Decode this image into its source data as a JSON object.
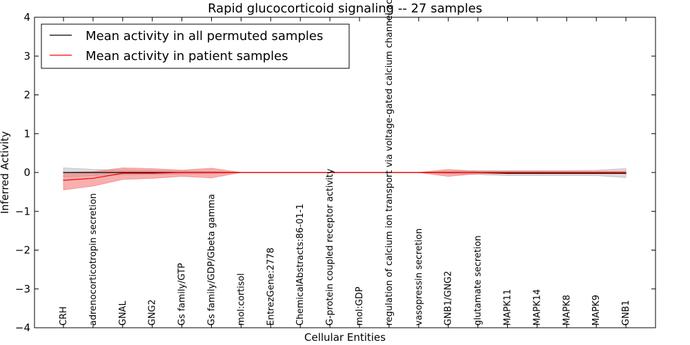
{
  "chart_data": {
    "type": "line",
    "title": "Rapid glucocorticoid signaling -- 27 samples",
    "xlabel": "Cellular Entities",
    "ylabel": "Inferred Activity",
    "ylim": [
      -4,
      4
    ],
    "yticks": [
      4,
      3,
      2,
      1,
      0,
      -1,
      -2,
      -3,
      -4
    ],
    "ytick_labels": [
      "4",
      "3",
      "2",
      "1",
      "0",
      "−1",
      "−2",
      "−3",
      "−4"
    ],
    "categories": [
      "CRH",
      "adrenocorticotropin secretion",
      "GNAL",
      "GNG2",
      "Gs family/GTP",
      "Gs family/GDP/Gbeta gamma",
      "mol:cortisol",
      "EntrezGene:2778",
      "ChemicalAbstracts:86-01-1",
      "G-protein coupled receptor activity",
      "mol:GDP",
      "regulation of calcium ion transport via voltage-gated calcium channel activity",
      "vasopressin secretion",
      "GNB1/GNG2",
      "glutamate secretion",
      "MAPK11",
      "MAPK14",
      "MAPK8",
      "MAPK9",
      "GNB1"
    ],
    "series": [
      {
        "name": "Mean activity in all permuted samples",
        "color": "#000000",
        "band_color": "#b0b0b0",
        "values": [
          0.0,
          0.0,
          0.0,
          0.0,
          0.0,
          0.0,
          0.0,
          0.0,
          0.0,
          0.0,
          0.0,
          0.0,
          0.0,
          0.0,
          0.0,
          -0.02,
          -0.02,
          -0.02,
          -0.02,
          -0.02
        ],
        "band_upper": [
          0.12,
          0.08,
          0.06,
          0.05,
          0.04,
          0.03,
          0.0,
          0.0,
          0.0,
          0.0,
          0.0,
          0.0,
          0.0,
          0.03,
          0.05,
          0.05,
          0.05,
          0.05,
          0.06,
          0.1
        ],
        "band_lower": [
          -0.12,
          -0.08,
          -0.06,
          -0.05,
          -0.04,
          -0.03,
          0.0,
          0.0,
          0.0,
          0.0,
          0.0,
          0.0,
          0.0,
          -0.03,
          -0.05,
          -0.08,
          -0.08,
          -0.08,
          -0.08,
          -0.13
        ]
      },
      {
        "name": "Mean activity in patient samples",
        "color": "#ff0000",
        "band_color": "#f47a7a",
        "values": [
          -0.2,
          -0.15,
          -0.02,
          -0.02,
          0.0,
          0.0,
          0.0,
          0.0,
          0.0,
          0.0,
          0.0,
          0.0,
          0.0,
          0.0,
          0.0,
          0.0,
          0.0,
          0.0,
          0.0,
          0.0
        ],
        "band_upper": [
          0.0,
          0.02,
          0.12,
          0.1,
          0.06,
          0.11,
          0.0,
          0.0,
          0.0,
          0.0,
          0.0,
          0.0,
          0.0,
          0.08,
          0.03,
          0.03,
          0.03,
          0.03,
          0.03,
          0.03
        ],
        "band_lower": [
          -0.45,
          -0.35,
          -0.18,
          -0.15,
          -0.1,
          -0.14,
          0.0,
          0.0,
          0.0,
          0.0,
          0.0,
          0.0,
          0.0,
          -0.1,
          -0.03,
          -0.03,
          -0.03,
          -0.03,
          -0.03,
          -0.03
        ]
      }
    ],
    "legend_position": "top-left"
  }
}
